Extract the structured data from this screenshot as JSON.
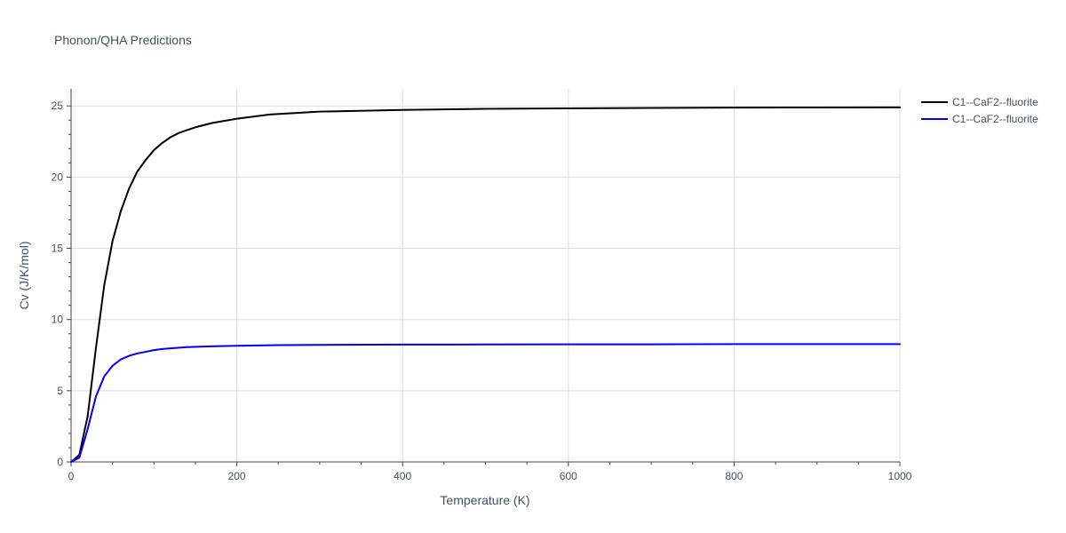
{
  "chart_data": {
    "type": "line",
    "title": "Phonon/QHA Predictions",
    "xlabel": "Temperature (K)",
    "ylabel": "Cv (J/K/mol)",
    "xlim": [
      0,
      1000
    ],
    "ylim": [
      0,
      26.2
    ],
    "x_ticks": [
      0,
      200,
      400,
      600,
      800,
      1000
    ],
    "y_ticks": [
      0,
      5,
      10,
      15,
      20,
      25
    ],
    "grid": true,
    "legend_position": "top-right",
    "series": [
      {
        "name": "C1--CaF2--fluorite",
        "color": "#000000",
        "x": [
          0,
          10,
          20,
          30,
          40,
          50,
          60,
          70,
          80,
          90,
          100,
          110,
          120,
          130,
          140,
          150,
          160,
          170,
          180,
          200,
          240,
          300,
          400,
          500,
          600,
          700,
          800,
          900,
          1000
        ],
        "y": [
          0,
          0.5,
          3.2,
          8.0,
          12.4,
          15.5,
          17.6,
          19.2,
          20.4,
          21.2,
          21.9,
          22.4,
          22.8,
          23.1,
          23.3,
          23.5,
          23.65,
          23.8,
          23.9,
          24.1,
          24.4,
          24.6,
          24.72,
          24.8,
          24.83,
          24.86,
          24.88,
          24.89,
          24.9
        ]
      },
      {
        "name": "C1--CaF2--fluorite",
        "color": "#0000ff",
        "x": [
          0,
          10,
          20,
          30,
          40,
          50,
          60,
          70,
          80,
          90,
          100,
          110,
          120,
          140,
          160,
          180,
          200,
          250,
          300,
          400,
          500,
          600,
          700,
          800,
          900,
          1000
        ],
        "y": [
          0,
          0.3,
          2.3,
          4.6,
          6.0,
          6.75,
          7.2,
          7.45,
          7.62,
          7.73,
          7.85,
          7.93,
          7.98,
          8.06,
          8.1,
          8.13,
          8.16,
          8.2,
          8.22,
          8.24,
          8.25,
          8.26,
          8.26,
          8.27,
          8.27,
          8.27
        ]
      }
    ]
  }
}
